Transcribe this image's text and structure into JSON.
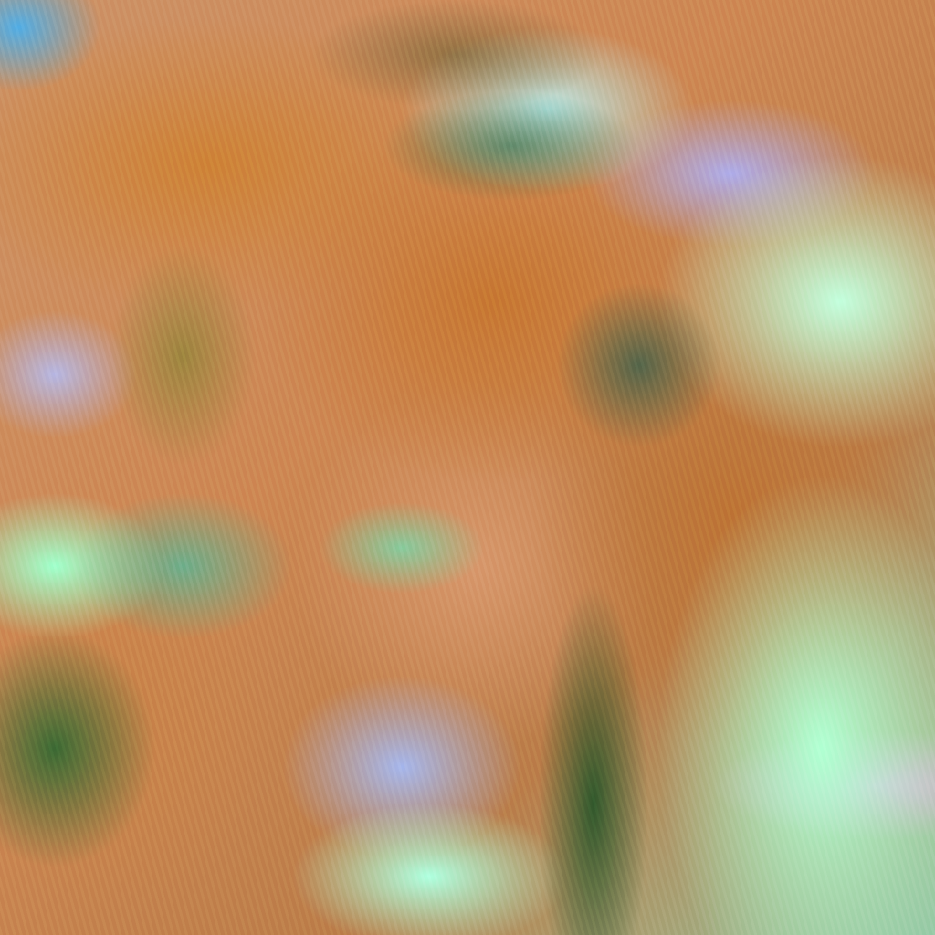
{
  "image": {
    "palette": {
      "dust_orange": "#c27a3a",
      "pink_haze": "#d39a72",
      "cloud_mint": "#b8ffd6",
      "cloud_cyan": "#60e0c0",
      "shadow_green": "#1e5028",
      "lavender": "#a9b8e8",
      "sky_blue": "#5aaee0"
    }
  }
}
